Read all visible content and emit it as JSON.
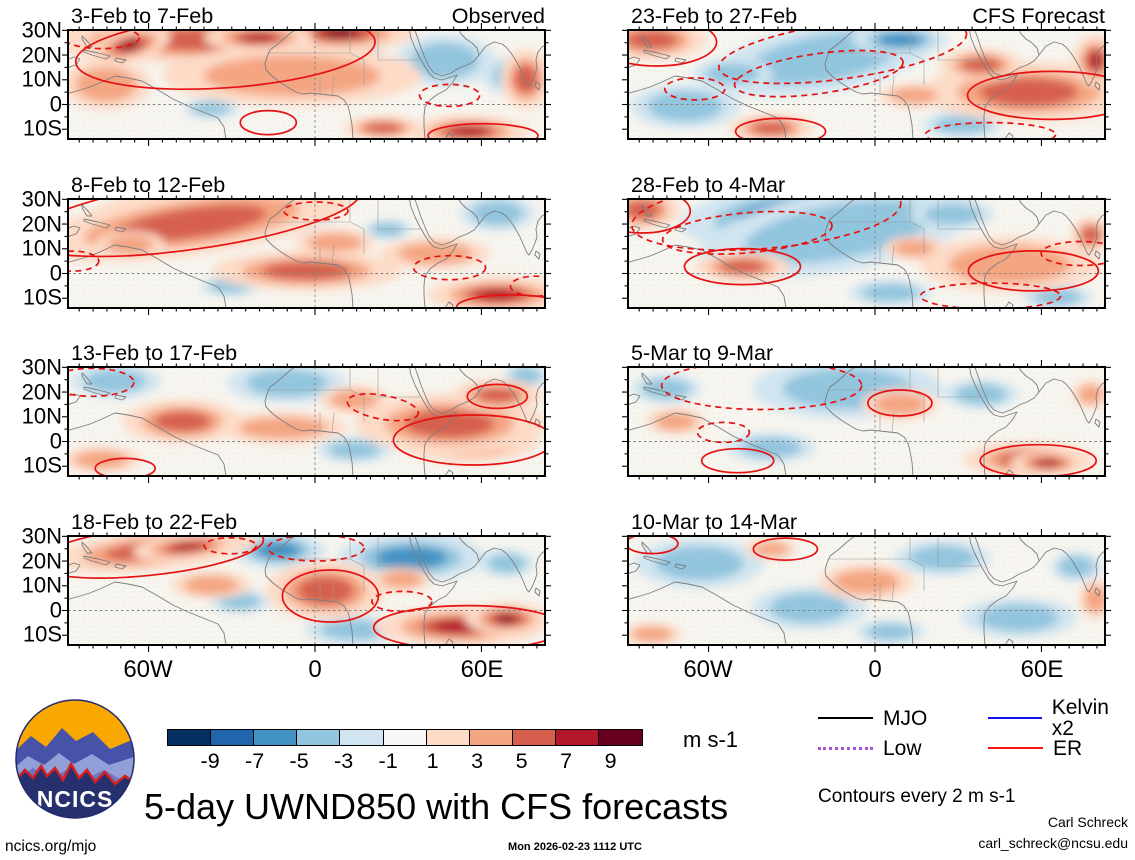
{
  "figure": {
    "title": "5-day UWND850 with CFS forecasts",
    "site": "ncics.org/mjo",
    "timestamp": "Mon 2026-02-23 1112 UTC",
    "credit_name": "Carl Schreck",
    "credit_email": "carl_schreck@ncsu.edu",
    "logo_text": "NCICS"
  },
  "legend": {
    "items": [
      {
        "label": "MJO",
        "color": "#000000",
        "style": "solid"
      },
      {
        "label": "Kelvin x2",
        "color": "#1212ee",
        "style": "solid"
      },
      {
        "label": "Low",
        "color": "#a654d4",
        "style": "dotted"
      },
      {
        "label": "ER",
        "color": "#ff1212",
        "style": "solid"
      }
    ],
    "note": "Contours every 2 m s-1"
  },
  "chart_data": {
    "type": "heatmap",
    "subtype": "filled_contour_map_grid",
    "variable": "UWND850 anomaly",
    "units": "m s-1",
    "contour_interval_note": "Contours every 2 m s-1",
    "grid": {
      "rows": 4,
      "columns": 2
    },
    "column_headers": [
      "Observed",
      "CFS Forecast"
    ],
    "lat_ticks": [
      "30N",
      "20N",
      "10N",
      "0",
      "10S"
    ],
    "lon_ticks": [
      "60W",
      "0",
      "60E"
    ],
    "colorbar": {
      "levels": [
        -9,
        -7,
        -5,
        -3,
        -1,
        1,
        3,
        5,
        7,
        9
      ],
      "colors": [
        "#053061",
        "#2166ac",
        "#4393c3",
        "#92c5de",
        "#d1e5f0",
        "#f7f7f7",
        "#fddbc7",
        "#f4a582",
        "#d6604d",
        "#b2182b",
        "#67001f"
      ]
    },
    "panels": [
      {
        "title": "3-Feb to 7-Feb",
        "header": "Observed",
        "column": 0,
        "warm": [
          [
            0.3,
            0.09,
            180,
            24,
            0,
            2
          ],
          [
            0.13,
            0.14,
            42,
            16,
            -15,
            4
          ],
          [
            0.57,
            0.03,
            75,
            18,
            0,
            4
          ],
          [
            0.4,
            0.07,
            55,
            14,
            0,
            3
          ],
          [
            0.47,
            0.42,
            130,
            30,
            0,
            1
          ],
          [
            0.08,
            0.5,
            45,
            25,
            0,
            1
          ],
          [
            0.84,
            0.93,
            60,
            16,
            0,
            3
          ],
          [
            0.66,
            0.9,
            40,
            12,
            0,
            2
          ],
          [
            0.96,
            0.45,
            25,
            30,
            0,
            2
          ]
        ],
        "cool": [
          [
            0.79,
            0.28,
            50,
            26,
            0,
            1
          ],
          [
            0.93,
            0.42,
            28,
            20,
            0,
            1
          ],
          [
            0.3,
            0.72,
            28,
            10,
            0,
            1
          ],
          [
            0.6,
            0.2,
            30,
            14,
            0,
            1
          ]
        ],
        "red_solid": [
          [
            0.33,
            0.2,
            150,
            36,
            -4
          ],
          [
            0.42,
            0.85,
            28,
            12,
            0
          ],
          [
            0.87,
            0.97,
            55,
            12,
            0
          ]
        ],
        "red_dashed": [
          [
            0.07,
            0.07,
            38,
            11,
            0
          ],
          [
            0.8,
            0.6,
            30,
            11,
            0
          ]
        ]
      },
      {
        "title": "8-Feb to 12-Feb",
        "column": 0,
        "warm": [
          [
            0.28,
            0.1,
            130,
            28,
            -8,
            4
          ],
          [
            0.26,
            0.22,
            160,
            32,
            -8,
            2
          ],
          [
            0.5,
            0.66,
            95,
            20,
            0,
            2
          ],
          [
            0.77,
            0.5,
            55,
            16,
            0,
            1
          ],
          [
            0.9,
            0.88,
            70,
            18,
            0,
            3
          ],
          [
            0.56,
            0.4,
            40,
            14,
            0,
            1
          ],
          [
            0.13,
            0.42,
            35,
            14,
            0,
            1
          ]
        ],
        "cool": [
          [
            0.46,
            0.16,
            45,
            16,
            0,
            1
          ],
          [
            0.9,
            0.13,
            38,
            18,
            0,
            1
          ],
          [
            0.67,
            0.28,
            24,
            10,
            0,
            1
          ],
          [
            0.34,
            0.8,
            30,
            10,
            0,
            1
          ]
        ],
        "red_solid": [
          [
            0.26,
            0.15,
            170,
            34,
            -8
          ],
          [
            0.93,
            0.99,
            55,
            12,
            0
          ]
        ],
        "red_dashed": [
          [
            0.52,
            0.11,
            32,
            9,
            0
          ],
          [
            0.8,
            0.63,
            36,
            12,
            0
          ],
          [
            0.01,
            0.57,
            26,
            10,
            0
          ],
          [
            0.98,
            0.8,
            25,
            10,
            0
          ]
        ]
      },
      {
        "title": "13-Feb to 17-Feb",
        "column": 0,
        "warm": [
          [
            0.24,
            0.5,
            60,
            22,
            0,
            2
          ],
          [
            0.45,
            0.56,
            65,
            16,
            0,
            1
          ],
          [
            0.84,
            0.68,
            70,
            22,
            0,
            4
          ],
          [
            0.8,
            0.52,
            95,
            30,
            0,
            2
          ],
          [
            0.9,
            0.26,
            45,
            16,
            0,
            2
          ],
          [
            0.07,
            0.85,
            40,
            13,
            0,
            1
          ],
          [
            0.6,
            0.3,
            35,
            14,
            0,
            1
          ]
        ],
        "cool": [
          [
            0.46,
            0.15,
            60,
            20,
            0,
            1
          ],
          [
            0.1,
            0.13,
            45,
            17,
            0,
            1
          ],
          [
            0.6,
            0.76,
            38,
            13,
            0,
            1
          ],
          [
            0.96,
            0.08,
            22,
            12,
            0,
            1
          ]
        ],
        "red_solid": [
          [
            0.85,
            0.67,
            80,
            25,
            0
          ],
          [
            0.9,
            0.27,
            30,
            12,
            0
          ],
          [
            0.12,
            0.93,
            30,
            10,
            0
          ]
        ],
        "red_dashed": [
          [
            0.66,
            0.37,
            36,
            12,
            10
          ],
          [
            0.05,
            0.14,
            42,
            14,
            0
          ]
        ]
      },
      {
        "title": "18-Feb to 22-Feb",
        "column": 0,
        "warm": [
          [
            0.18,
            0.13,
            105,
            20,
            -6,
            2
          ],
          [
            0.25,
            0.1,
            55,
            13,
            -6,
            3
          ],
          [
            0.55,
            0.56,
            38,
            20,
            0,
            4
          ],
          [
            0.54,
            0.5,
            60,
            30,
            0,
            2
          ],
          [
            0.82,
            0.83,
            85,
            20,
            0,
            3
          ],
          [
            0.92,
            0.76,
            42,
            16,
            0,
            4
          ],
          [
            0.3,
            0.45,
            40,
            14,
            0,
            1
          ],
          [
            0.7,
            0.4,
            30,
            12,
            0,
            1
          ]
        ],
        "cool": [
          [
            0.44,
            0.13,
            48,
            18,
            0,
            2
          ],
          [
            0.76,
            0.1,
            42,
            16,
            0,
            4
          ],
          [
            0.72,
            0.2,
            75,
            24,
            0,
            2
          ],
          [
            0.6,
            0.86,
            50,
            15,
            0,
            1
          ],
          [
            0.92,
            0.25,
            28,
            14,
            0,
            1
          ],
          [
            0.36,
            0.6,
            30,
            12,
            0,
            1
          ]
        ],
        "red_solid": [
          [
            0.17,
            0.14,
            115,
            24,
            -6
          ],
          [
            0.55,
            0.55,
            48,
            26,
            0
          ],
          [
            0.84,
            0.84,
            95,
            22,
            0
          ]
        ],
        "red_dashed": [
          [
            0.52,
            0.11,
            48,
            13,
            0
          ],
          [
            0.34,
            0.09,
            26,
            8,
            0
          ],
          [
            0.7,
            0.6,
            30,
            10,
            0
          ]
        ]
      },
      {
        "title": "23-Feb to 27-Feb",
        "header": "CFS Forecast",
        "column": 1,
        "warm": [
          [
            0.05,
            0.09,
            55,
            20,
            0,
            2
          ],
          [
            0.88,
            0.6,
            75,
            22,
            0,
            4
          ],
          [
            0.84,
            0.57,
            105,
            30,
            0,
            2
          ],
          [
            0.74,
            0.32,
            42,
            16,
            0,
            2
          ],
          [
            0.3,
            0.9,
            42,
            14,
            0,
            2
          ],
          [
            0.98,
            0.28,
            22,
            26,
            0,
            3
          ],
          [
            0.6,
            0.6,
            35,
            12,
            0,
            1
          ]
        ],
        "cool": [
          [
            0.36,
            0.22,
            75,
            24,
            -10,
            3
          ],
          [
            0.41,
            0.26,
            115,
            34,
            -10,
            1
          ],
          [
            0.57,
            0.09,
            48,
            15,
            0,
            2
          ],
          [
            0.12,
            0.7,
            55,
            22,
            0,
            1
          ],
          [
            0.7,
            0.87,
            40,
            13,
            0,
            1
          ],
          [
            0.22,
            0.4,
            40,
            15,
            0,
            1
          ]
        ],
        "red_solid": [
          [
            0.06,
            0.11,
            60,
            24,
            0
          ],
          [
            0.89,
            0.6,
            85,
            24,
            0
          ],
          [
            0.32,
            0.93,
            45,
            13,
            0
          ]
        ],
        "red_dashed": [
          [
            0.45,
            0.19,
            125,
            28,
            -8
          ],
          [
            0.4,
            0.4,
            85,
            20,
            -8
          ],
          [
            0.14,
            0.54,
            30,
            11,
            0
          ],
          [
            0.76,
            0.96,
            65,
            12,
            0
          ]
        ]
      },
      {
        "title": "28-Feb to 4-Mar",
        "column": 1,
        "warm": [
          [
            0.03,
            0.1,
            38,
            20,
            0,
            2
          ],
          [
            0.24,
            0.62,
            48,
            15,
            0,
            2
          ],
          [
            0.84,
            0.66,
            60,
            20,
            0,
            3
          ],
          [
            0.8,
            0.6,
            90,
            28,
            0,
            1
          ],
          [
            0.97,
            0.33,
            20,
            18,
            0,
            2
          ],
          [
            0.6,
            0.45,
            30,
            12,
            0,
            1
          ]
        ],
        "cool": [
          [
            0.34,
            0.12,
            65,
            22,
            -5,
            4
          ],
          [
            0.33,
            0.16,
            105,
            32,
            -5,
            2
          ],
          [
            0.44,
            0.3,
            140,
            40,
            -10,
            1
          ],
          [
            0.68,
            0.14,
            42,
            15,
            0,
            1
          ],
          [
            0.55,
            0.86,
            42,
            13,
            0,
            1
          ],
          [
            0.9,
            0.9,
            35,
            12,
            0,
            1
          ]
        ],
        "red_solid": [
          [
            0.03,
            0.11,
            48,
            22,
            0
          ],
          [
            0.24,
            0.62,
            58,
            18,
            0
          ],
          [
            0.85,
            0.66,
            65,
            20,
            0
          ]
        ],
        "red_dashed": [
          [
            0.29,
            0.14,
            135,
            34,
            -5
          ],
          [
            0.25,
            0.31,
            85,
            20,
            -5
          ],
          [
            0.76,
            0.89,
            70,
            13,
            0
          ],
          [
            0.95,
            0.5,
            40,
            12,
            0
          ]
        ]
      },
      {
        "title": "5-Mar to 9-Mar",
        "column": 1,
        "warm": [
          [
            0.57,
            0.34,
            38,
            16,
            0,
            1
          ],
          [
            0.84,
            0.85,
            65,
            18,
            0,
            2
          ],
          [
            0.88,
            0.88,
            38,
            12,
            0,
            3
          ],
          [
            0.1,
            0.5,
            30,
            13,
            0,
            1
          ],
          [
            0.97,
            0.25,
            18,
            14,
            0,
            1
          ]
        ],
        "cool": [
          [
            0.42,
            0.17,
            65,
            22,
            0,
            2
          ],
          [
            0.46,
            0.2,
            95,
            30,
            0,
            1
          ],
          [
            0.74,
            0.25,
            38,
            15,
            0,
            1
          ],
          [
            0.3,
            0.74,
            45,
            15,
            0,
            1
          ],
          [
            0.08,
            0.2,
            35,
            15,
            0,
            1
          ]
        ],
        "red_solid": [
          [
            0.57,
            0.33,
            32,
            13,
            0
          ],
          [
            0.23,
            0.86,
            36,
            12,
            0
          ],
          [
            0.86,
            0.86,
            58,
            16,
            0
          ]
        ],
        "red_dashed": [
          [
            0.28,
            0.17,
            100,
            24,
            0
          ],
          [
            0.2,
            0.6,
            26,
            10,
            0
          ]
        ]
      },
      {
        "title": "10-Mar to 14-Mar",
        "column": 1,
        "warm": [
          [
            0.5,
            0.42,
            48,
            18,
            0,
            1
          ],
          [
            0.05,
            0.9,
            30,
            11,
            0,
            1
          ],
          [
            0.98,
            0.58,
            16,
            20,
            0,
            1
          ],
          [
            0.3,
            0.12,
            26,
            10,
            0,
            1
          ]
        ],
        "cool": [
          [
            0.15,
            0.25,
            65,
            25,
            0,
            1
          ],
          [
            0.38,
            0.66,
            58,
            22,
            0,
            1
          ],
          [
            0.66,
            0.2,
            48,
            18,
            0,
            1
          ],
          [
            0.82,
            0.75,
            58,
            20,
            0,
            1
          ],
          [
            0.94,
            0.28,
            26,
            15,
            0,
            1
          ],
          [
            0.55,
            0.88,
            35,
            12,
            0,
            1
          ]
        ],
        "red_solid": [
          [
            0.33,
            0.12,
            32,
            11,
            0
          ],
          [
            0.05,
            0.07,
            26,
            10,
            0
          ]
        ],
        "red_dashed": []
      }
    ]
  }
}
